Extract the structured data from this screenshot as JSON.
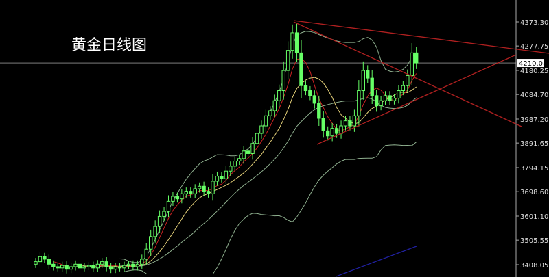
{
  "title": "黄金日线图",
  "chart_data": {
    "type": "candlestick",
    "title": "黄金日线图",
    "ylim": [
      3385,
      4400
    ],
    "y_ticks": [
      "4373.30",
      "4277.75",
      "4180.25",
      "4084.70",
      "3987.20",
      "3891.65",
      "3794.15",
      "3698.60",
      "3601.10",
      "3505.55",
      "3408.05"
    ],
    "current_price": "4210.04",
    "first_open": 3410,
    "closes": [
      3420,
      3440,
      3430,
      3410,
      3400,
      3395,
      3405,
      3390,
      3400,
      3410,
      3395,
      3400,
      3405,
      3395,
      3410,
      3420,
      3400,
      3390,
      3400,
      3395,
      3405,
      3410,
      3400,
      3410,
      3430,
      3470,
      3520,
      3560,
      3600,
      3620,
      3660,
      3680,
      3670,
      3690,
      3700,
      3690,
      3710,
      3720,
      3700,
      3690,
      3740,
      3760,
      3750,
      3780,
      3800,
      3820,
      3830,
      3860,
      3850,
      3890,
      3930,
      3960,
      4000,
      4020,
      4060,
      4100,
      4180,
      4260,
      4330,
      4250,
      4120,
      4100,
      4080,
      4050,
      3990,
      3940,
      3920,
      3950,
      3930,
      3960,
      3980,
      3960,
      4000,
      4100,
      4180,
      4150,
      4080,
      4040,
      4060,
      4080,
      4060,
      4070,
      4100,
      4120,
      4160,
      4250,
      4210
    ],
    "colors": {
      "candle": "#66ff66",
      "ma_fast": "#cc2222",
      "ma_slow": "#e6d27a",
      "bands": "#8fb08f",
      "trendline": "#b02020",
      "axis": "#aaaaaa",
      "extra_line": "#2020a0"
    }
  }
}
